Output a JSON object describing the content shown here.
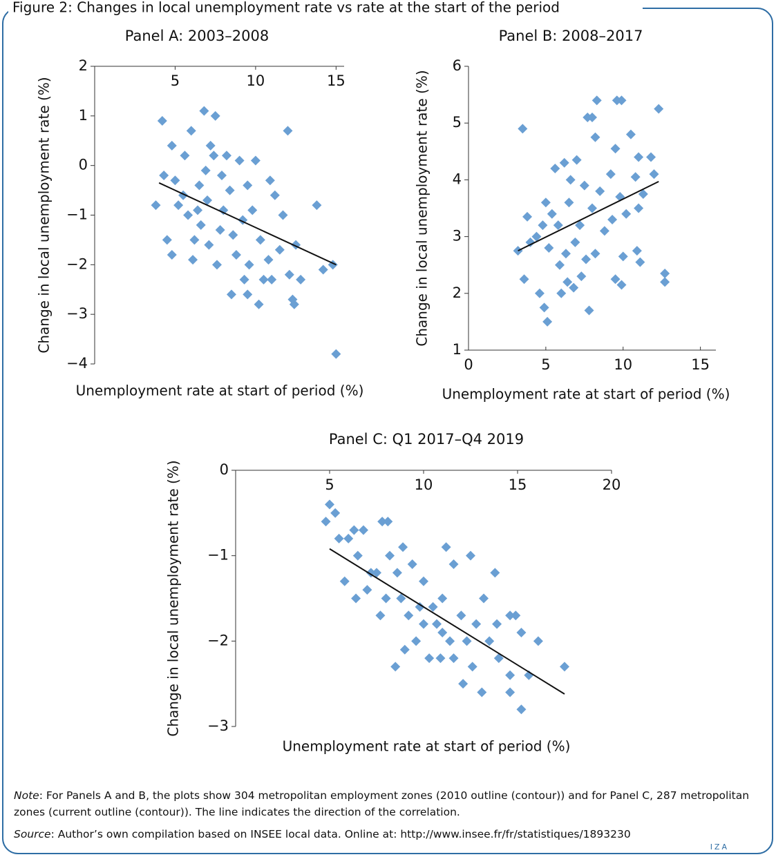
{
  "title": "Figure 2: Changes in local unemployment rate vs rate at the start of the period",
  "chart_data": [
    {
      "type": "scatter",
      "title": "Panel A: 2003–2008",
      "x_label": "Unemployment rate at start of period (%)",
      "y_label": "Change in local unemployment rate (%)",
      "color": "#6a9fd3",
      "x_axis_position": "top",
      "xlim": [
        0,
        15.5
      ],
      "ylim": [
        -4,
        2
      ],
      "xticks": [
        5,
        10,
        15
      ],
      "yticks": [
        2,
        1,
        0,
        {
          "value": -1,
          "label": "−1"
        },
        {
          "value": -2,
          "label": "−2"
        },
        {
          "value": -3,
          "label": "−3"
        },
        {
          "value": -4,
          "label": "−4"
        }
      ],
      "x": [
        4.2,
        6.8,
        7.5,
        12,
        15,
        14.8,
        13.8,
        8.5,
        9.5,
        10.2,
        12.3,
        12.4,
        6,
        4.8,
        7.2,
        3.8,
        4.5,
        4.8,
        6.1,
        9.3,
        10.5,
        11,
        12.8,
        12.1,
        14.2,
        12.5,
        11.7,
        11.2,
        10,
        9,
        8.2,
        7.4,
        5.6,
        4.3,
        5,
        5.5,
        6.5,
        7,
        8,
        7.8,
        6.6,
        5.8,
        6.2,
        7.1,
        8.6,
        9.2,
        9.8,
        10.3,
        10.8,
        11.5,
        8.8,
        9.6,
        7.6,
        6.9,
        8.4,
        9.5,
        10.9,
        5.2,
        6.4,
        7.9
      ],
      "values": [
        0.9,
        1.1,
        1.0,
        0.7,
        -3.8,
        -2.0,
        -0.8,
        -2.6,
        -2.6,
        -2.8,
        -2.7,
        -2.8,
        0.7,
        0.4,
        0.4,
        -0.8,
        -1.5,
        -1.8,
        -1.9,
        -2.3,
        -2.3,
        -2.3,
        -2.3,
        -2.2,
        -2.1,
        -1.6,
        -1.0,
        -0.6,
        0.1,
        0.1,
        0.2,
        0.2,
        0.2,
        -0.2,
        -0.3,
        -0.6,
        -0.4,
        -0.7,
        -0.9,
        -1.3,
        -1.2,
        -1.0,
        -1.5,
        -1.6,
        -1.4,
        -1.1,
        -0.9,
        -1.5,
        -1.9,
        -1.7,
        -1.8,
        -2.0,
        -2.0,
        -0.1,
        -0.5,
        -0.4,
        -0.3,
        -0.8,
        -0.9,
        -0.2
      ],
      "trend": {
        "x": [
          4,
          15
        ],
        "y": [
          -0.35,
          -2.0
        ]
      }
    },
    {
      "type": "scatter",
      "title": "Panel B: 2008–2017",
      "x_label": "Unemployment rate at start of period (%)",
      "y_label": "Change in local unemployment rate (%)",
      "color": "#6a9fd3",
      "x_axis_position": "bottom",
      "xlim": [
        0,
        16
      ],
      "ylim": [
        1,
        6
      ],
      "xticks": [
        0,
        5,
        10,
        15
      ],
      "yticks": [
        1,
        2,
        3,
        4,
        5,
        6
      ],
      "x": [
        3.5,
        5.1,
        7.8,
        8.3,
        9.6,
        9.9,
        12.3,
        12.7,
        12.7,
        11.1,
        10.9,
        9.5,
        9.9,
        10,
        4.9,
        4.6,
        3.6,
        3.2,
        4,
        3.8,
        4.4,
        5,
        5.6,
        6.2,
        7,
        7.7,
        8,
        8.2,
        9.5,
        10.5,
        11,
        11.8,
        12,
        10.8,
        9.2,
        8.5,
        7.5,
        6.5,
        5.8,
        5.2,
        5.9,
        6.4,
        6,
        6.8,
        7.3,
        7.6,
        8.2,
        8.8,
        9.3,
        10.2,
        11,
        11.3,
        6.9,
        7.2,
        6.3,
        5.4,
        4.8,
        8,
        9.8,
        6.6
      ],
      "values": [
        4.9,
        1.5,
        1.7,
        5.4,
        5.4,
        5.4,
        5.25,
        2.35,
        2.2,
        2.55,
        2.75,
        2.25,
        2.15,
        2.65,
        1.75,
        2.0,
        2.25,
        2.75,
        2.9,
        3.35,
        3.0,
        3.6,
        4.2,
        4.3,
        4.35,
        5.1,
        5.1,
        4.75,
        4.55,
        4.8,
        4.4,
        4.4,
        4.1,
        4.05,
        4.1,
        3.8,
        3.9,
        3.6,
        3.2,
        2.8,
        2.5,
        2.2,
        2.0,
        2.1,
        2.3,
        2.6,
        2.7,
        3.1,
        3.3,
        3.4,
        3.5,
        3.75,
        2.9,
        3.2,
        2.7,
        3.4,
        3.2,
        3.5,
        3.7,
        4.0
      ],
      "trend": {
        "x": [
          3.2,
          12.3
        ],
        "y": [
          2.75,
          3.97
        ]
      }
    },
    {
      "type": "scatter",
      "title": "Panel C: Q1 2017–Q4 2019",
      "x_label": "Unemployment rate at start of period (%)",
      "y_label": "Change in local unemployment rate (%)",
      "color": "#6a9fd3",
      "x_axis_position": "top",
      "xlim": [
        0,
        20
      ],
      "ylim": [
        -3,
        0
      ],
      "xticks": [
        5,
        10,
        15,
        20
      ],
      "yticks": [
        0,
        {
          "value": -1,
          "label": "−1"
        },
        {
          "value": -2,
          "label": "−2"
        },
        {
          "value": -3,
          "label": "−3"
        }
      ],
      "x": [
        4.8,
        5,
        5.3,
        5.5,
        6,
        6.3,
        6.8,
        7.8,
        8.1,
        5.8,
        6.4,
        7,
        7.5,
        7.7,
        8.2,
        8.6,
        8.9,
        9.4,
        10,
        10.5,
        11,
        11.6,
        12.5,
        13.8,
        13.2,
        12.8,
        12.3,
        11.6,
        12.6,
        12.1,
        13.1,
        15.2,
        14.6,
        14.6,
        15.6,
        17.5,
        16.1,
        15.2,
        14.6,
        14.9,
        13.9,
        8.5,
        9,
        9.6,
        10.3,
        11,
        9.2,
        8.8,
        10.9,
        11.4,
        10,
        8,
        7.2,
        6.5,
        9.8,
        10.7,
        12,
        11.2,
        13.5,
        14
      ],
      "values": [
        -0.6,
        -0.4,
        -0.5,
        -0.8,
        -0.8,
        -0.7,
        -0.7,
        -0.6,
        -0.6,
        -1.3,
        -1.5,
        -1.4,
        -1.2,
        -1.7,
        -1.0,
        -1.2,
        -0.9,
        -1.1,
        -1.3,
        -1.6,
        -1.5,
        -1.1,
        -1.0,
        -1.2,
        -1.5,
        -1.8,
        -2.0,
        -2.2,
        -2.3,
        -2.5,
        -2.6,
        -2.8,
        -2.4,
        -2.6,
        -2.4,
        -2.3,
        -2.0,
        -1.9,
        -1.7,
        -1.7,
        -1.8,
        -2.3,
        -2.1,
        -2.0,
        -2.2,
        -1.9,
        -1.7,
        -1.5,
        -2.2,
        -2.0,
        -1.8,
        -1.5,
        -1.2,
        -1.0,
        -1.6,
        -1.8,
        -1.7,
        -0.9,
        -2.0,
        -2.2
      ],
      "trend": {
        "x": [
          5,
          17.5
        ],
        "y": [
          -0.92,
          -2.62
        ]
      }
    }
  ],
  "note": {
    "label": "Note",
    "text": ": For Panels A and B, the plots show 304 metropolitan employment zones (2010 outline (contour)) and for Panel C, 287 metropolitan zones (current outline (contour)). The line indicates the direction of the correlation."
  },
  "source": {
    "label": "Source",
    "text": ": Author’s own compilation based on INSEE local data. Online at: http://www.insee.fr/fr/statistiques/1893230"
  },
  "logo": "IZA"
}
